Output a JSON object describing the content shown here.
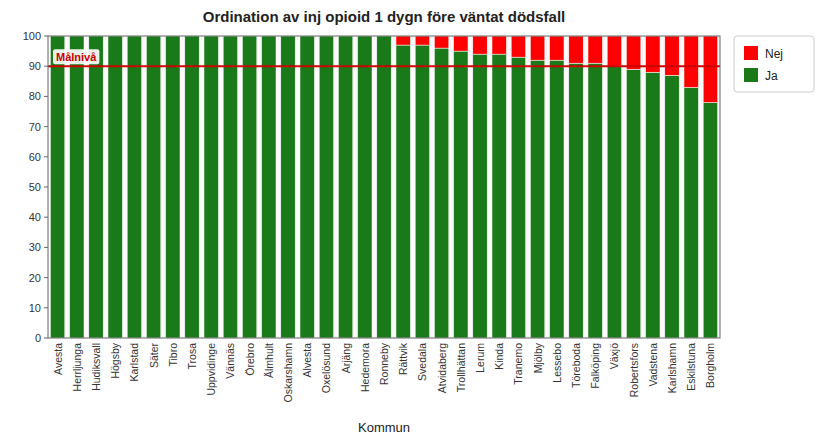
{
  "chart_data": {
    "type": "bar",
    "stacked": true,
    "title": "Ordination av inj opioid 1 dygn före väntat dödsfall",
    "x_label": "Kommun",
    "categories": [
      "Avesta",
      "Herrljunga",
      "Hudiksvall",
      "Högsby",
      "Karlstad",
      "Säter",
      "Tibro",
      "Trosa",
      "Uppvidinge",
      "Vännäs",
      "Örebro",
      "Älmhult",
      "Oskarshamn",
      "Alvesta",
      "Oxelösund",
      "Arjäng",
      "Hedemora",
      "Ronneby",
      "Rättvik",
      "Svedala",
      "Atvidaberg",
      "Trollhättan",
      "Lerum",
      "Kinda",
      "Tranemo",
      "Mjölby",
      "Lessebo",
      "Töreboda",
      "Falköping",
      "Växjö",
      "Robertsfors",
      "Vadstena",
      "Karlshamn",
      "Eskilstuna",
      "Borgholm"
    ],
    "series": [
      {
        "name": "Ja",
        "color": "#1a7a1a",
        "values": [
          100,
          100,
          100,
          100,
          100,
          100,
          100,
          100,
          100,
          100,
          100,
          100,
          100,
          100,
          100,
          100,
          100,
          100,
          97,
          97,
          96,
          95,
          94,
          94,
          93,
          92,
          92,
          91,
          91,
          90,
          89,
          88,
          87,
          83,
          78
        ]
      },
      {
        "name": "Nej",
        "color": "#ff0000",
        "values": [
          0,
          0,
          0,
          0,
          0,
          0,
          0,
          0,
          0,
          0,
          0,
          0,
          0,
          0,
          0,
          0,
          0,
          0,
          3,
          3,
          4,
          5,
          6,
          6,
          7,
          8,
          8,
          9,
          9,
          10,
          11,
          12,
          13,
          17,
          22
        ]
      }
    ],
    "reference_line": {
      "y": 90,
      "label": "Målnivå",
      "color": "#cc0000"
    },
    "ylim": [
      0,
      100
    ],
    "yticks": [
      0,
      10,
      20,
      30,
      40,
      50,
      60,
      70,
      80,
      90,
      100
    ],
    "grid": false,
    "legend": "right"
  }
}
